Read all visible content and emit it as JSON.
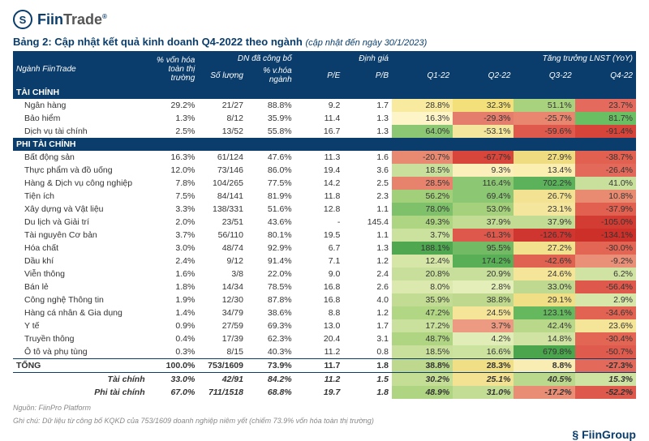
{
  "brand": {
    "main": "Fiin",
    "sub": "Trade",
    "reg": "®",
    "icon": "S",
    "footer": "FiinGroup"
  },
  "title": {
    "main": "Bảng 2: Cập nhật kết quả kinh doanh Q4-2022 theo ngành",
    "note": "(cập nhật đến ngày 30/1/2023)"
  },
  "headers": {
    "sector": "Ngành FiinTrade",
    "mcap": "% vốn hóa toàn thị trường",
    "announced": "DN đã công bố",
    "valuation": "Định giá",
    "growth": "Tăng trưởng LNST (YoY)",
    "qty": "Số lượng",
    "pct": "% v.hóa ngành",
    "pe": "P/E",
    "pb": "P/B",
    "q1": "Q1-22",
    "q2": "Q2-22",
    "q3": "Q3-22",
    "q4": "Q4-22"
  },
  "sections": [
    {
      "name": "TÀI CHÍNH",
      "rows": [
        {
          "n": "Ngân hàng",
          "m": "29.2%",
          "q": "21/27",
          "p": "88.8%",
          "pe": "9.2",
          "pb": "1.7",
          "g": [
            [
              "28.8%",
              "#f8ea9e"
            ],
            [
              "32.3%",
              "#f3e07a"
            ],
            [
              "51.1%",
              "#a9d27f"
            ],
            [
              "23.7%",
              "#e36a5c"
            ]
          ]
        },
        {
          "n": "Bảo hiểm",
          "m": "1.3%",
          "q": "8/12",
          "p": "35.9%",
          "pe": "11.4",
          "pb": "1.3",
          "g": [
            [
              "16.3%",
              "#fdf4c8"
            ],
            [
              "-29.3%",
              "#e57d6c"
            ],
            [
              "-25.7%",
              "#e8866f"
            ],
            [
              "81.7%",
              "#6bbf63"
            ]
          ]
        },
        {
          "n": "Dịch vụ tài chính",
          "m": "2.5%",
          "q": "13/52",
          "p": "55.8%",
          "pe": "16.7",
          "pb": "1.3",
          "g": [
            [
              "64.0%",
              "#8cc873"
            ],
            [
              "-53.1%",
              "#f5e69d"
            ],
            [
              "-59.6%",
              "#df5a4d"
            ],
            [
              "-91.4%",
              "#d6443a"
            ]
          ]
        }
      ]
    },
    {
      "name": "PHI TÀI CHÍNH",
      "rows": [
        {
          "n": "Bất động sản",
          "m": "16.3%",
          "q": "61/124",
          "p": "47.6%",
          "pe": "11.3",
          "pb": "1.6",
          "g": [
            [
              "-20.7%",
              "#e88a72"
            ],
            [
              "-67.7%",
              "#d7453b"
            ],
            [
              "27.9%",
              "#f0dc80"
            ],
            [
              "-38.7%",
              "#e1604f"
            ]
          ]
        },
        {
          "n": "Thực phẩm và đồ uống",
          "m": "12.0%",
          "q": "73/146",
          "p": "86.0%",
          "pe": "19.4",
          "pb": "3.6",
          "g": [
            [
              "18.5%",
              "#c9e09c"
            ],
            [
              "9.3%",
              "#fbf0bb"
            ],
            [
              "13.4%",
              "#faeeb0"
            ],
            [
              "-26.4%",
              "#e36a5a"
            ]
          ]
        },
        {
          "n": "Hàng & Dịch vụ công nghiệp",
          "m": "7.8%",
          "q": "104/265",
          "p": "77.5%",
          "pe": "14.2",
          "pb": "2.5",
          "g": [
            [
              "28.5%",
              "#e7826d"
            ],
            [
              "116.4%",
              "#8cc873"
            ],
            [
              "702.2%",
              "#5bb25a"
            ],
            [
              "41.0%",
              "#c9e09c"
            ]
          ]
        },
        {
          "n": "Tiện ích",
          "m": "7.5%",
          "q": "84/141",
          "p": "81.9%",
          "pe": "11.8",
          "pb": "2.3",
          "g": [
            [
              "56.2%",
              "#a2cf7a"
            ],
            [
              "69.4%",
              "#8cc873"
            ],
            [
              "26.7%",
              "#f3e292"
            ],
            [
              "10.8%",
              "#e98b71"
            ]
          ]
        },
        {
          "n": "Xây dựng và Vật liệu",
          "m": "3.3%",
          "q": "138/331",
          "p": "51.6%",
          "pe": "12.8",
          "pb": "1.1",
          "g": [
            [
              "78.0%",
              "#7ec16a"
            ],
            [
              "53.0%",
              "#a6d17c"
            ],
            [
              "23.1%",
              "#f5e69d"
            ],
            [
              "-37.9%",
              "#e1604f"
            ]
          ]
        },
        {
          "n": "Du lịch và Giải trí",
          "m": "2.0%",
          "q": "23/51",
          "p": "43.6%",
          "pe": "-",
          "pb": "145.4",
          "g": [
            [
              "49.3%",
              "#aed582"
            ],
            [
              "37.9%",
              "#c2dc93"
            ],
            [
              "37.9%",
              "#c2dc93"
            ],
            [
              "-105.0%",
              "#d23c33"
            ]
          ]
        },
        {
          "n": "Tài nguyên Cơ bản",
          "m": "3.7%",
          "q": "56/110",
          "p": "80.1%",
          "pe": "19.5",
          "pb": "1.1",
          "g": [
            [
              "3.7%",
              "#cbe29e"
            ],
            [
              "-61.3%",
              "#de594c"
            ],
            [
              "-126.7%",
              "#cf362f"
            ],
            [
              "-134.1%",
              "#cc3029"
            ]
          ]
        },
        {
          "n": "Hóa chất",
          "m": "3.0%",
          "q": "48/74",
          "p": "92.9%",
          "pe": "6.7",
          "pb": "1.3",
          "g": [
            [
              "188.1%",
              "#4fa850"
            ],
            [
              "95.5%",
              "#72ba63"
            ],
            [
              "27.2%",
              "#f2e18d"
            ],
            [
              "-30.0%",
              "#e36553"
            ]
          ]
        },
        {
          "n": "Dầu khí",
          "m": "2.4%",
          "q": "9/12",
          "p": "91.4%",
          "pe": "7.1",
          "pb": "1.2",
          "g": [
            [
              "12.4%",
              "#d5e6a7"
            ],
            [
              "174.2%",
              "#58af55"
            ],
            [
              "-42.6%",
              "#e06251"
            ],
            [
              "-9.2%",
              "#ea9079"
            ]
          ]
        },
        {
          "n": "Viễn thông",
          "m": "1.6%",
          "q": "3/8",
          "p": "22.0%",
          "pe": "9.0",
          "pb": "2.4",
          "g": [
            [
              "20.8%",
              "#c7df9a"
            ],
            [
              "20.9%",
              "#c7df9a"
            ],
            [
              "24.6%",
              "#f4e598"
            ],
            [
              "6.2%",
              "#d1e3a2"
            ]
          ]
        },
        {
          "n": "Bán lẻ",
          "m": "1.8%",
          "q": "14/34",
          "p": "78.5%",
          "pe": "16.8",
          "pb": "2.6",
          "g": [
            [
              "8.0%",
              "#dbe9ae"
            ],
            [
              "2.8%",
              "#e3eeb8"
            ],
            [
              "33.0%",
              "#bfda90"
            ],
            [
              "-56.4%",
              "#de584b"
            ]
          ]
        },
        {
          "n": "Công nghệ Thông tin",
          "m": "1.9%",
          "q": "12/30",
          "p": "87.8%",
          "pe": "16.8",
          "pb": "4.0",
          "g": [
            [
              "35.9%",
              "#c3dc94"
            ],
            [
              "38.8%",
              "#bed98d"
            ],
            [
              "29.1%",
              "#f1df86"
            ],
            [
              "2.9%",
              "#d7e7aa"
            ]
          ]
        },
        {
          "n": "Hàng cá nhân & Gia dụng",
          "m": "1.4%",
          "q": "34/79",
          "p": "38.6%",
          "pe": "8.8",
          "pb": "1.2",
          "g": [
            [
              "47.2%",
              "#b1d684"
            ],
            [
              "24.5%",
              "#f4e598"
            ],
            [
              "123.1%",
              "#66b85e"
            ],
            [
              "-34.6%",
              "#e26352"
            ]
          ]
        },
        {
          "n": "Y tế",
          "m": "0.9%",
          "q": "27/59",
          "p": "69.3%",
          "pe": "13.0",
          "pb": "1.7",
          "g": [
            [
              "17.2%",
              "#cae19d"
            ],
            [
              "3.7%",
              "#ec9a81"
            ],
            [
              "42.4%",
              "#b9d88a"
            ],
            [
              "23.6%",
              "#f4e598"
            ]
          ]
        },
        {
          "n": "Truyền thông",
          "m": "0.4%",
          "q": "17/39",
          "p": "62.3%",
          "pe": "20.4",
          "pb": "3.1",
          "g": [
            [
              "48.7%",
              "#afd582"
            ],
            [
              "4.2%",
              "#e1edb6"
            ],
            [
              "14.8%",
              "#d1e3a2"
            ],
            [
              "-30.4%",
              "#e36553"
            ]
          ]
        },
        {
          "n": "Ô tô và phụ tùng",
          "m": "0.3%",
          "q": "8/15",
          "p": "40.3%",
          "pe": "11.2",
          "pb": "0.8",
          "g": [
            [
              "18.5%",
              "#c9e09c"
            ],
            [
              "16.6%",
              "#cce29f"
            ],
            [
              "679.8%",
              "#4aa54d"
            ],
            [
              "-50.7%",
              "#df5b4e"
            ]
          ]
        }
      ]
    }
  ],
  "total": {
    "label": "TỔNG",
    "m": "100.0%",
    "q": "753/1609",
    "p": "73.9%",
    "pe": "11.7",
    "pb": "1.8",
    "g": [
      [
        "38.8%",
        "#bed98d"
      ],
      [
        "28.3%",
        "#f1df86"
      ],
      [
        "8.8%",
        "#f9edb3"
      ],
      [
        "-27.3%",
        "#e36a5a"
      ]
    ]
  },
  "sub": [
    {
      "n": "Tài chính",
      "m": "33.0%",
      "q": "42/91",
      "p": "84.2%",
      "pe": "11.2",
      "pb": "1.5",
      "g": [
        [
          "30.2%",
          "#c5de96"
        ],
        [
          "25.1%",
          "#f3e292"
        ],
        [
          "40.5%",
          "#bbd98c"
        ],
        [
          "15.3%",
          "#cee2a1"
        ]
      ]
    },
    {
      "n": "Phi tài chính",
      "m": "67.0%",
      "q": "711/1518",
      "p": "68.8%",
      "pe": "19.7",
      "pb": "1.8",
      "g": [
        [
          "48.9%",
          "#afd582"
        ],
        [
          "31.0%",
          "#c4dd95"
        ],
        [
          "-17.2%",
          "#e98e75"
        ],
        [
          "-52.2%",
          "#de584b"
        ]
      ]
    }
  ],
  "foot": {
    "a": "Nguồn: FiinPro Platform",
    "b": "Ghi chú: Dữ liệu từ công bố KQKD của 753/1609 doanh nghiệp niêm yết (chiếm 73.9% vốn hóa toàn thị trường)"
  }
}
